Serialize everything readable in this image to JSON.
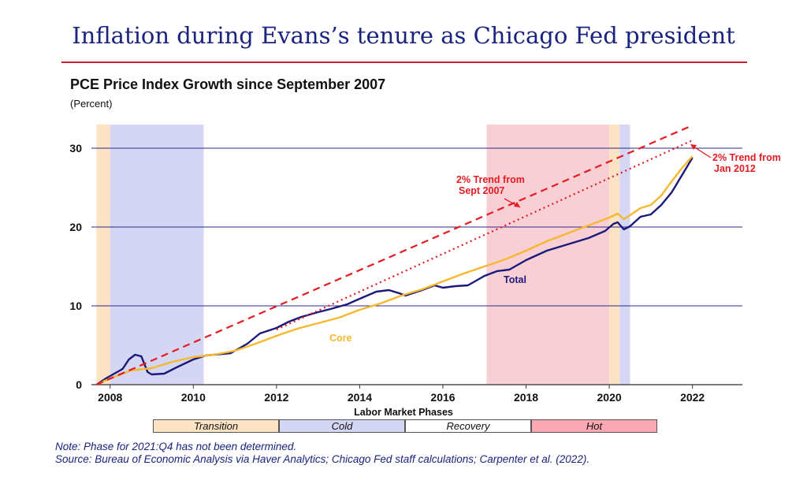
{
  "slide": {
    "title": "Inflation during Evans’s tenure as Chicago Fed president"
  },
  "chart_data": {
    "type": "line",
    "title": "PCE Price Index Growth since September 2007",
    "unit_label": "(Percent)",
    "xlim": [
      2007.55,
      2023.2
    ],
    "ylim": [
      0,
      33
    ],
    "x_ticks": [
      2008,
      2010,
      2012,
      2014,
      2016,
      2018,
      2020,
      2022
    ],
    "x_tick_labels": [
      "2008",
      "2010",
      "2012",
      "2014",
      "2016",
      "2018",
      "2020",
      "2022"
    ],
    "y_ticks": [
      0,
      10,
      20,
      30
    ],
    "y_tick_labels": [
      "0",
      "10",
      "20",
      "30"
    ],
    "gridlines": "horizontal",
    "series": [
      {
        "name": "Total",
        "color": "#1a1a7a",
        "points": [
          [
            2007.67,
            0
          ],
          [
            2007.9,
            0.8
          ],
          [
            2008.3,
            2.0
          ],
          [
            2008.45,
            3.2
          ],
          [
            2008.6,
            3.8
          ],
          [
            2008.75,
            3.6
          ],
          [
            2008.9,
            1.6
          ],
          [
            2009.0,
            1.3
          ],
          [
            2009.3,
            1.4
          ],
          [
            2009.6,
            2.2
          ],
          [
            2010.0,
            3.2
          ],
          [
            2010.3,
            3.7
          ],
          [
            2010.9,
            4.0
          ],
          [
            2011.3,
            5.2
          ],
          [
            2011.6,
            6.5
          ],
          [
            2012.0,
            7.2
          ],
          [
            2012.3,
            8.0
          ],
          [
            2012.6,
            8.6
          ],
          [
            2013.0,
            9.2
          ],
          [
            2013.3,
            9.6
          ],
          [
            2013.7,
            10.2
          ],
          [
            2014.0,
            10.9
          ],
          [
            2014.4,
            11.8
          ],
          [
            2014.7,
            12.0
          ],
          [
            2014.95,
            11.6
          ],
          [
            2015.1,
            11.3
          ],
          [
            2015.5,
            12.0
          ],
          [
            2015.8,
            12.6
          ],
          [
            2016.0,
            12.3
          ],
          [
            2016.3,
            12.5
          ],
          [
            2016.6,
            12.6
          ],
          [
            2017.0,
            13.8
          ],
          [
            2017.3,
            14.4
          ],
          [
            2017.6,
            14.6
          ],
          [
            2018.0,
            15.8
          ],
          [
            2018.5,
            17.0
          ],
          [
            2019.0,
            17.8
          ],
          [
            2019.5,
            18.6
          ],
          [
            2019.9,
            19.5
          ],
          [
            2020.1,
            20.4
          ],
          [
            2020.2,
            20.6
          ],
          [
            2020.35,
            19.7
          ],
          [
            2020.5,
            20.1
          ],
          [
            2020.75,
            21.3
          ],
          [
            2021.0,
            21.6
          ],
          [
            2021.25,
            22.8
          ],
          [
            2021.5,
            24.4
          ],
          [
            2021.75,
            26.6
          ],
          [
            2022.0,
            28.8
          ]
        ]
      },
      {
        "name": "Core",
        "color": "#f5b82e",
        "points": [
          [
            2007.67,
            0
          ],
          [
            2008.0,
            0.8
          ],
          [
            2008.5,
            1.8
          ],
          [
            2009.0,
            2.1
          ],
          [
            2009.5,
            2.9
          ],
          [
            2010.0,
            3.5
          ],
          [
            2010.5,
            3.8
          ],
          [
            2011.0,
            4.3
          ],
          [
            2011.5,
            5.2
          ],
          [
            2012.0,
            6.2
          ],
          [
            2012.5,
            7.1
          ],
          [
            2013.0,
            7.8
          ],
          [
            2013.5,
            8.5
          ],
          [
            2014.0,
            9.5
          ],
          [
            2014.5,
            10.3
          ],
          [
            2015.0,
            11.3
          ],
          [
            2015.5,
            12.1
          ],
          [
            2016.0,
            13.1
          ],
          [
            2016.5,
            14.1
          ],
          [
            2017.0,
            15.0
          ],
          [
            2017.5,
            15.9
          ],
          [
            2018.0,
            17.0
          ],
          [
            2018.5,
            18.2
          ],
          [
            2019.0,
            19.2
          ],
          [
            2019.5,
            20.2
          ],
          [
            2020.0,
            21.2
          ],
          [
            2020.2,
            21.7
          ],
          [
            2020.35,
            21.0
          ],
          [
            2020.5,
            21.5
          ],
          [
            2020.75,
            22.4
          ],
          [
            2021.0,
            22.8
          ],
          [
            2021.25,
            24.0
          ],
          [
            2021.5,
            25.8
          ],
          [
            2021.75,
            27.5
          ],
          [
            2022.0,
            29.0
          ]
        ]
      },
      {
        "name": "2% Trend from Sept 2007",
        "color": "#e31b23",
        "style": "dashed",
        "points": [
          [
            2007.67,
            0
          ],
          [
            2022.0,
            32.9
          ]
        ]
      },
      {
        "name": "2% Trend from Jan 2012",
        "color": "#e31b23",
        "style": "dotted",
        "points": [
          [
            2012.0,
            7.0
          ],
          [
            2022.0,
            31.0
          ]
        ]
      }
    ],
    "labels": {
      "total": "Total",
      "core": "Core",
      "trend_sept_2007": [
        "2% Trend from",
        "Sept 2007"
      ],
      "trend_jan_2012": [
        "2% Trend from",
        "Jan 2012"
      ]
    },
    "shaded_regions": [
      {
        "phase": "Transition",
        "start": 2007.67,
        "end": 2008.0,
        "color": "#fbe3c4"
      },
      {
        "phase": "Cold",
        "start": 2008.0,
        "end": 2010.25,
        "color": "#d4d6f3"
      },
      {
        "phase": "Hot",
        "start": 2017.05,
        "end": 2020.0,
        "color": "#f9cfd6"
      },
      {
        "phase": "Transition",
        "start": 2020.0,
        "end": 2020.25,
        "color": "#fbe3c4"
      },
      {
        "phase": "Cold",
        "start": 2020.25,
        "end": 2020.5,
        "color": "#d4d6f3"
      }
    ]
  },
  "phases_legend": {
    "title": "Labor Market Phases",
    "items": [
      {
        "label": "Transition",
        "color": "#fbe3c4"
      },
      {
        "label": "Cold",
        "color": "#d4d6f3"
      },
      {
        "label": "Recovery",
        "color": "#ffffff"
      },
      {
        "label": "Hot",
        "color": "#f9a8b4"
      }
    ]
  },
  "notes": {
    "note": "Note: Phase for 2021:Q4 has not been determined.",
    "source": "Source: Bureau of Economic Analysis via Haver Analytics; Chicago Fed staff calculations; Carpenter et al. (2022)."
  }
}
